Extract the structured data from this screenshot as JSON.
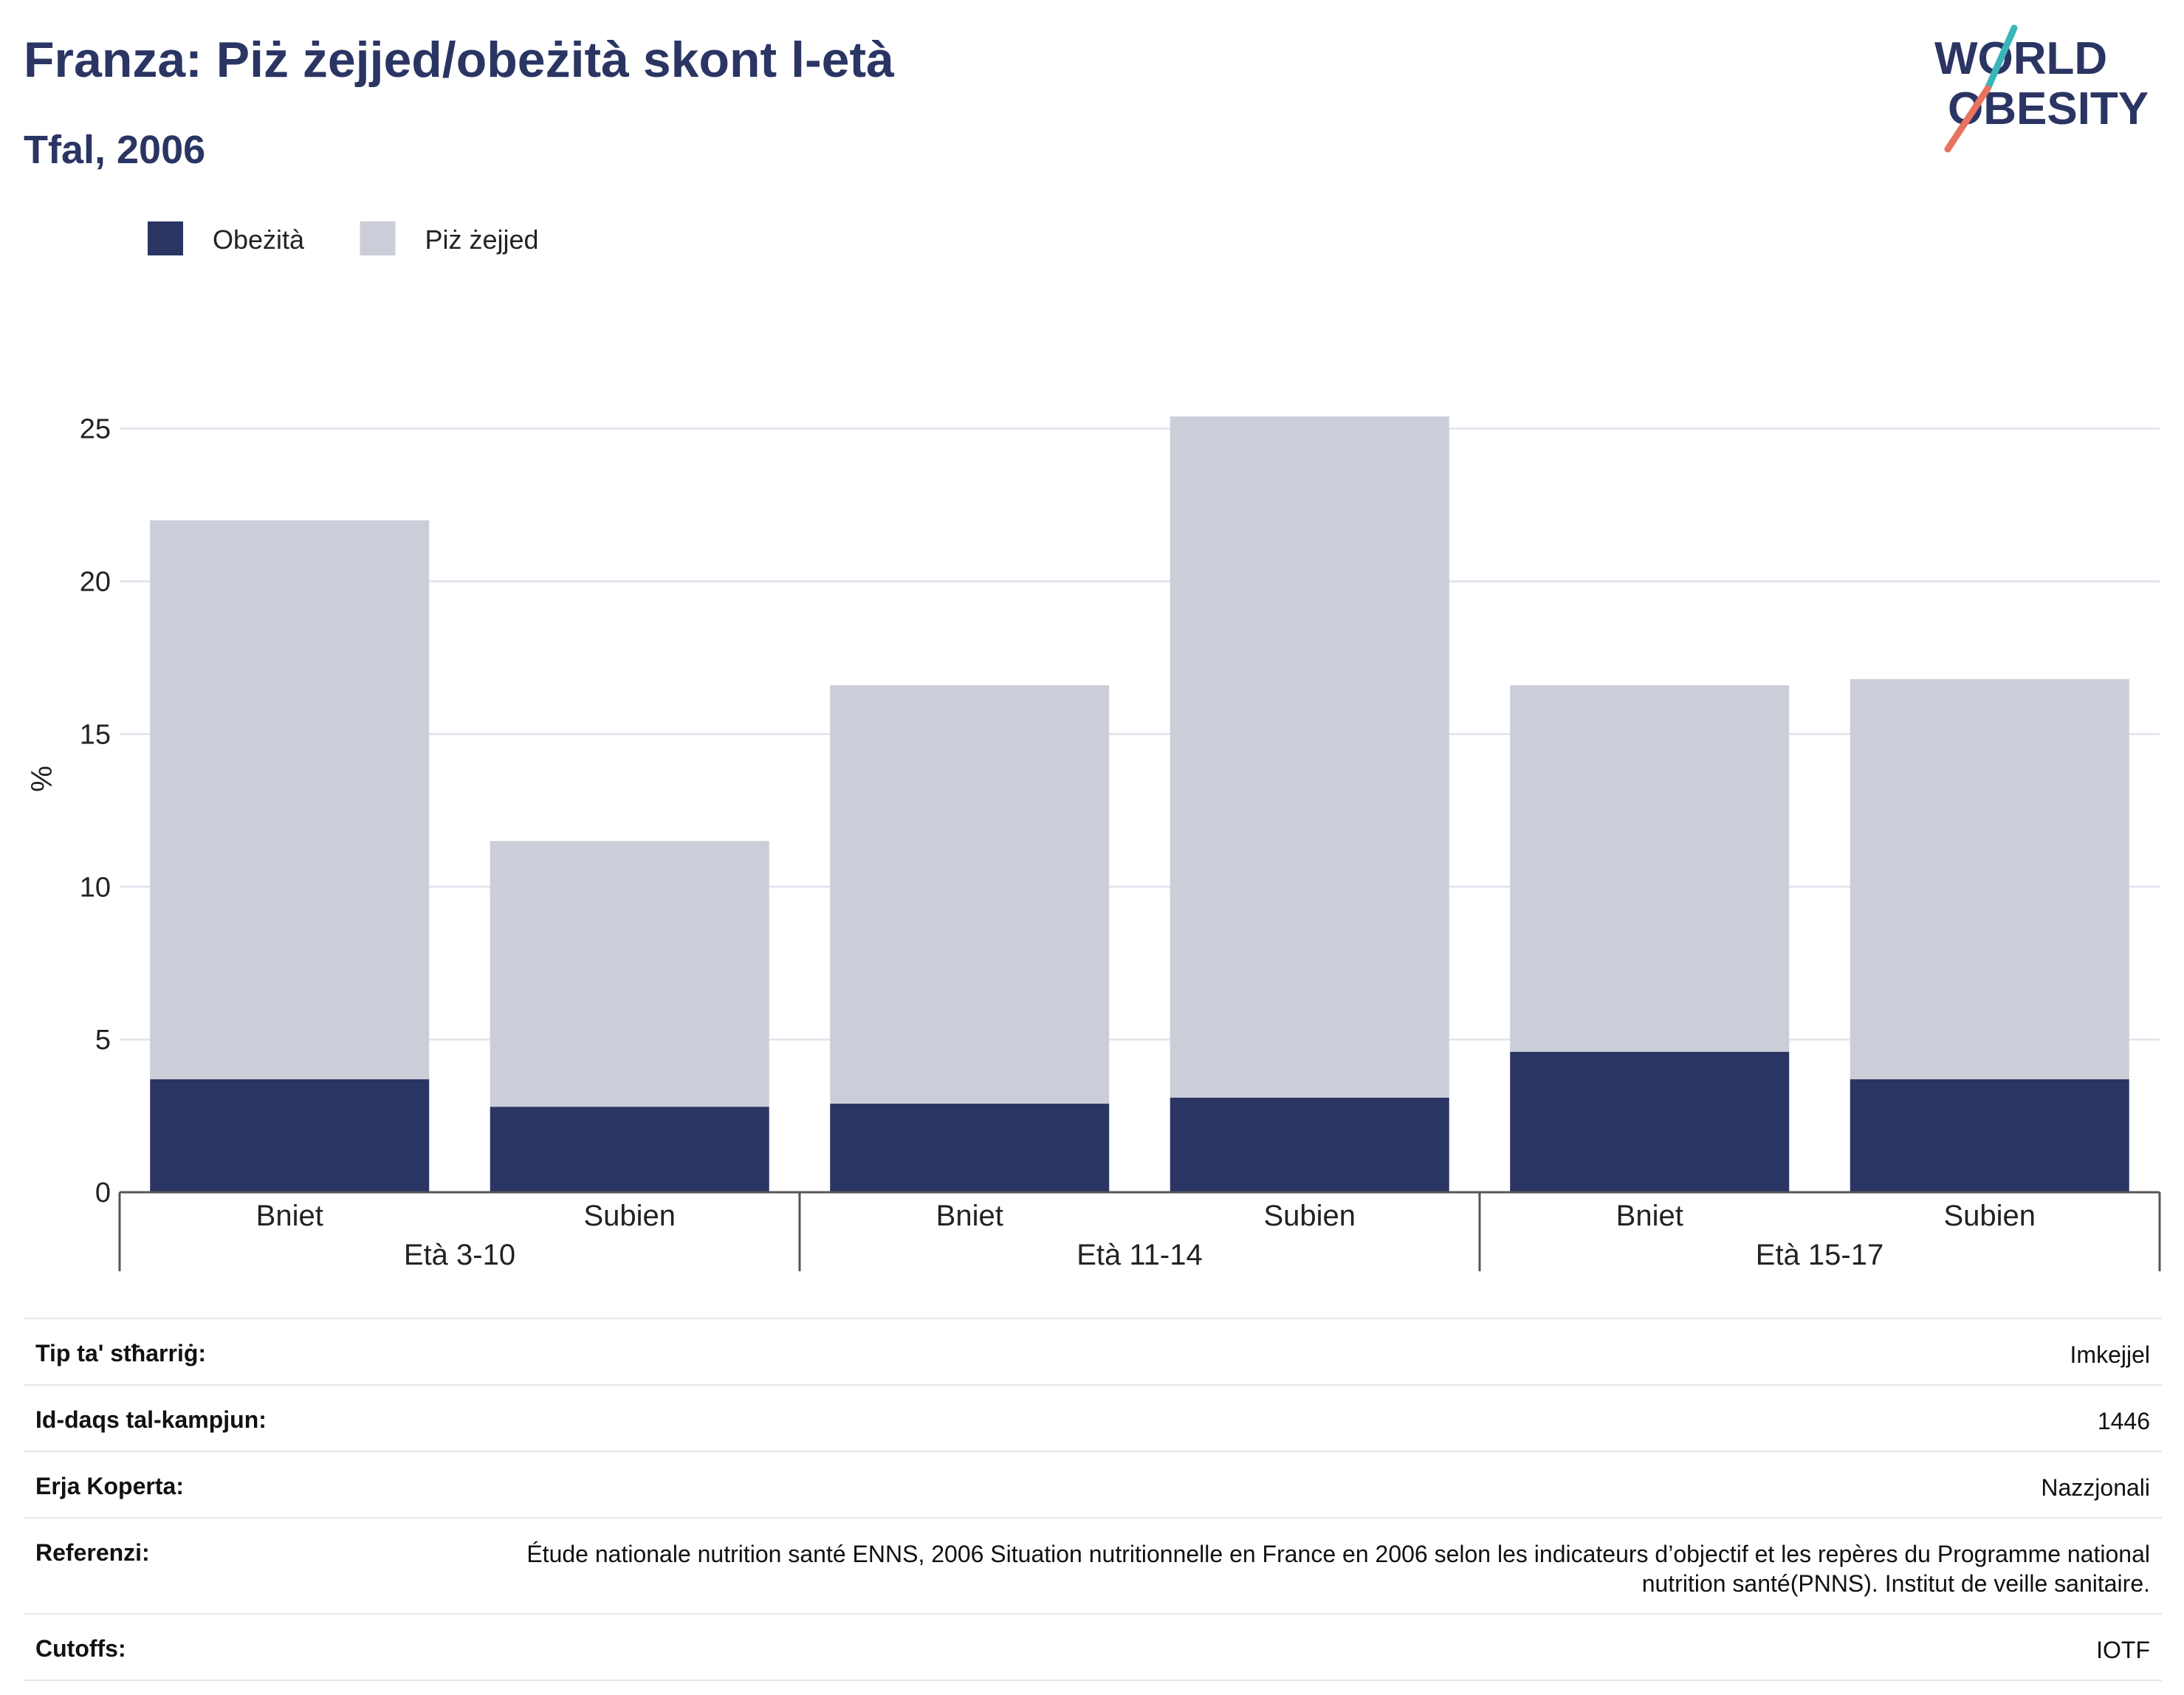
{
  "header": {
    "title": "Franza: Piż żejjed/obeżità skont l-età",
    "subtitle": "Tfal, 2006"
  },
  "logo": {
    "line1": "WORLD",
    "line2": "OBESITY"
  },
  "colors": {
    "obesity": "#2a3563",
    "overweight": "#cbcdd8",
    "text": "#2a3563",
    "grid": "#e4e6ee",
    "axis": "#555555",
    "logo_teal": "#3ab5b8",
    "logo_coral": "#e8735f"
  },
  "chart_data": {
    "type": "bar",
    "stacked": true,
    "legend": {
      "placement": "top-left",
      "items": [
        "Obeżità",
        "Piż żejjed"
      ]
    },
    "ylabel": "%",
    "xlabel": "",
    "ylim": [
      0,
      25.5
    ],
    "yticks": [
      0,
      5,
      10,
      15,
      20,
      25
    ],
    "grid": true,
    "groups": [
      "Età 3-10",
      "Età 11-14",
      "Età 15-17"
    ],
    "categories": [
      "Bniet",
      "Subien",
      "Bniet",
      "Subien",
      "Bniet",
      "Subien"
    ],
    "category_group": [
      0,
      0,
      1,
      1,
      2,
      2
    ],
    "series": [
      {
        "name": "Obeżità",
        "values": [
          3.7,
          2.8,
          2.9,
          3.1,
          4.6,
          3.7
        ]
      },
      {
        "name": "Piż żejjed",
        "values": [
          18.3,
          8.7,
          13.7,
          22.3,
          12.0,
          13.1
        ]
      }
    ]
  },
  "info": [
    {
      "label": "Tip ta' stħarriġ:",
      "value": "Imkejjel"
    },
    {
      "label": "Id-daqs tal-kampjun:",
      "value": "1446"
    },
    {
      "label": "Erja Koperta:",
      "value": "Nazzjonali"
    },
    {
      "label": "Referenzi:",
      "value": "Étude nationale nutrition santé ENNS, 2006 Situation nutritionnelle en France en 2006 selon les indicateurs d’objectif et les repères du Programme national nutrition santé(PNNS). Institut de veille sanitaire."
    },
    {
      "label": "Cutoffs:",
      "value": "IOTF"
    }
  ]
}
